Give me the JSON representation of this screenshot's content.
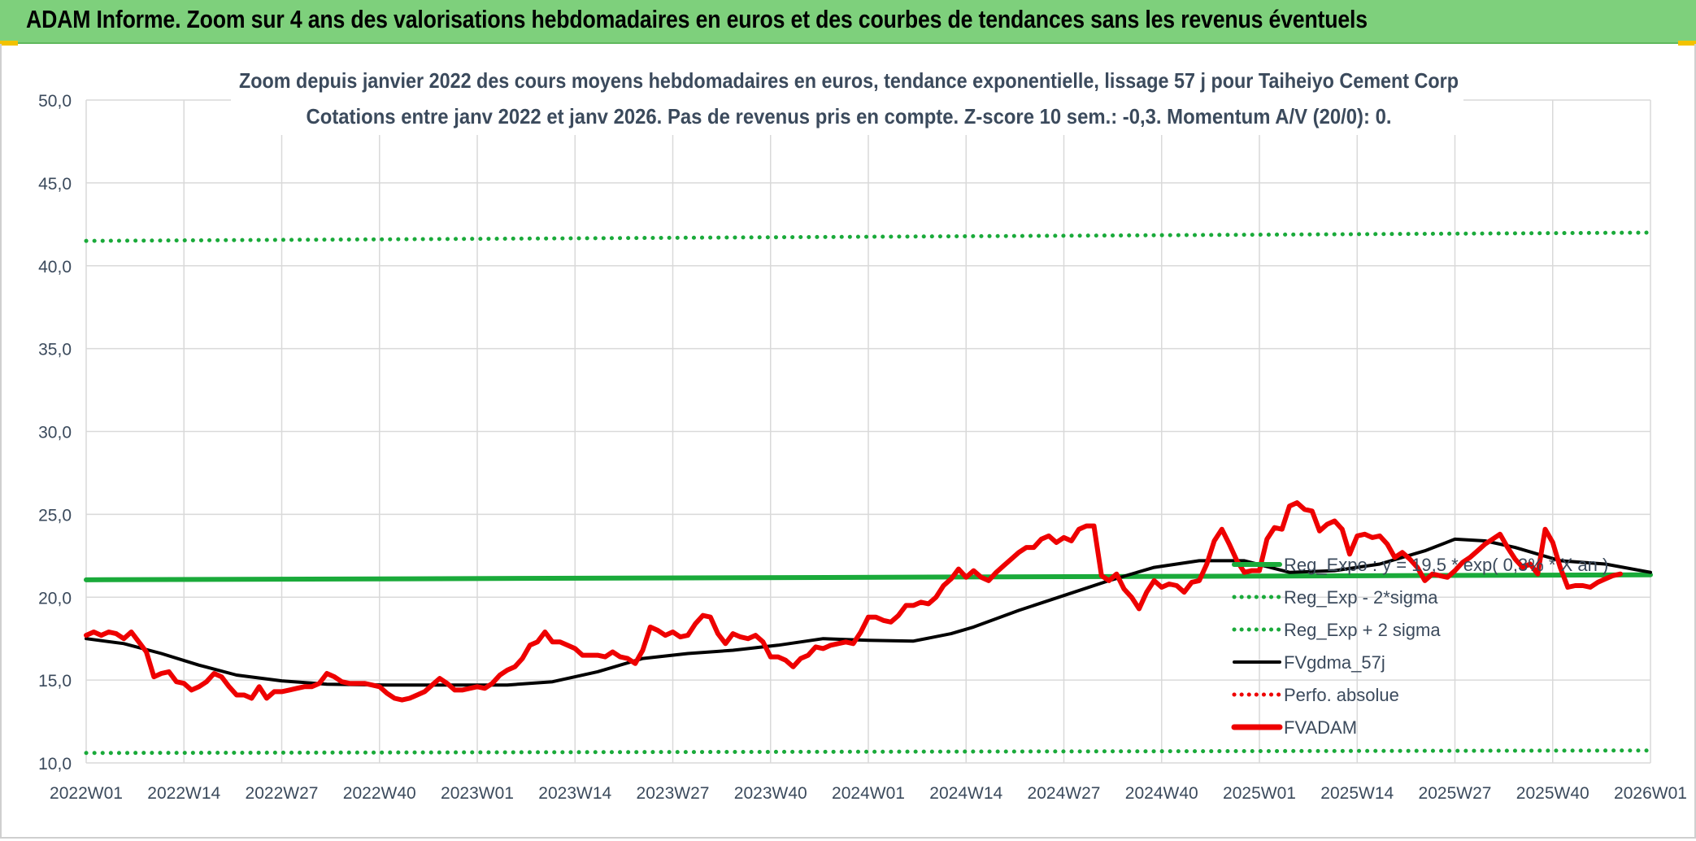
{
  "banner": {
    "title": "ADAM Informe. Zoom sur 4 ans des valorisations hebdomadaires en euros et des courbes de tendances sans les revenus éventuels"
  },
  "colors": {
    "banner_bg": "#7ed07c",
    "reg_expo": "#1aaa3a",
    "dotted_green": "#1aaa3a",
    "black_line": "#000000",
    "red_line": "#ee0000",
    "red_dotted": "#ee0000",
    "grid": "#d9d9d9",
    "title_text": "#3b4a5c",
    "axis_text": "#3b4a5c"
  },
  "chart_data": {
    "type": "line",
    "title_line1": "Zoom depuis janvier 2022 des cours moyens hebdomadaires en euros, tendance exponentielle, lissage 57 j pour Taiheiyo Cement Corp",
    "title_line2": "Cotations entre janv 2022 et janv 2026. Pas de revenus pris en compte. Z-score 10 sem.: -0,3. Momentum A/V (20/0): 0.",
    "ylim": [
      10,
      50
    ],
    "y_ticks": [
      "10,0",
      "15,0",
      "20,0",
      "25,0",
      "30,0",
      "35,0",
      "40,0",
      "45,0",
      "50,0"
    ],
    "x_count": 209,
    "x_tick_labels": [
      "2022W01",
      "2022W14",
      "2022W27",
      "2022W40",
      "2023W01",
      "2023W14",
      "2023W27",
      "2023W40",
      "2024W01",
      "2024W14",
      "2024W27",
      "2024W40",
      "2025W01",
      "2025W14",
      "2025W27",
      "2025W40",
      "2026W01"
    ],
    "legend": [
      {
        "name": "Reg_Expo : y = 19,5 * exp( 0,3% * X  an )",
        "style": "thick-green"
      },
      {
        "name": "Reg_Exp - 2*sigma",
        "style": "dotted-green"
      },
      {
        "name": "Reg_Exp + 2 sigma",
        "style": "dotted-green"
      },
      {
        "name": "FVgdma_57j",
        "style": "black"
      },
      {
        "name": "Perfo. absolue",
        "style": "dotted-red"
      },
      {
        "name": "FVADAM",
        "style": "thick-red"
      }
    ],
    "series": [
      {
        "name": "Reg_Expo",
        "start": 21.05,
        "end": 21.35
      },
      {
        "name": "Reg_Exp - 2*sigma",
        "start": 10.6,
        "end": 10.75
      },
      {
        "name": "Reg_Exp + 2 sigma",
        "start": 41.5,
        "end": 42.0
      },
      {
        "name": "FVgdma_57j",
        "points": [
          [
            0,
            17.5
          ],
          [
            5,
            17.2
          ],
          [
            10,
            16.6
          ],
          [
            15,
            15.9
          ],
          [
            20,
            15.3
          ],
          [
            26,
            14.95
          ],
          [
            32,
            14.75
          ],
          [
            40,
            14.7
          ],
          [
            48,
            14.7
          ],
          [
            56,
            14.7
          ],
          [
            62,
            14.9
          ],
          [
            68,
            15.5
          ],
          [
            74,
            16.3
          ],
          [
            80,
            16.6
          ],
          [
            86,
            16.8
          ],
          [
            92,
            17.1
          ],
          [
            98,
            17.5
          ],
          [
            104,
            17.4
          ],
          [
            110,
            17.35
          ],
          [
            115,
            17.8
          ],
          [
            118,
            18.2
          ],
          [
            124,
            19.2
          ],
          [
            130,
            20.1
          ],
          [
            136,
            21.0
          ],
          [
            142,
            21.8
          ],
          [
            148,
            22.2
          ],
          [
            154,
            22.2
          ],
          [
            160,
            21.5
          ],
          [
            166,
            21.6
          ],
          [
            172,
            22.0
          ],
          [
            178,
            22.8
          ],
          [
            182,
            23.5
          ],
          [
            186,
            23.4
          ],
          [
            190,
            23.0
          ],
          [
            196,
            22.2
          ],
          [
            202,
            22.0
          ],
          [
            208,
            21.5
          ]
        ]
      },
      {
        "name": "FVADAM",
        "points": [
          [
            0,
            17.7
          ],
          [
            1,
            17.9
          ],
          [
            2,
            17.7
          ],
          [
            3,
            17.9
          ],
          [
            4,
            17.8
          ],
          [
            5,
            17.5
          ],
          [
            6,
            17.9
          ],
          [
            7,
            17.3
          ],
          [
            8,
            16.7
          ],
          [
            9,
            15.2
          ],
          [
            10,
            15.4
          ],
          [
            11,
            15.5
          ],
          [
            12,
            14.9
          ],
          [
            13,
            14.8
          ],
          [
            14,
            14.4
          ],
          [
            15,
            14.6
          ],
          [
            16,
            14.9
          ],
          [
            17,
            15.4
          ],
          [
            18,
            15.2
          ],
          [
            19,
            14.6
          ],
          [
            20,
            14.1
          ],
          [
            21,
            14.1
          ],
          [
            22,
            13.9
          ],
          [
            23,
            14.6
          ],
          [
            24,
            13.9
          ],
          [
            25,
            14.3
          ],
          [
            26,
            14.3
          ],
          [
            27,
            14.4
          ],
          [
            28,
            14.5
          ],
          [
            29,
            14.6
          ],
          [
            30,
            14.6
          ],
          [
            31,
            14.8
          ],
          [
            32,
            15.4
          ],
          [
            33,
            15.2
          ],
          [
            34,
            14.9
          ],
          [
            35,
            14.8
          ],
          [
            36,
            14.8
          ],
          [
            37,
            14.8
          ],
          [
            38,
            14.7
          ],
          [
            39,
            14.6
          ],
          [
            40,
            14.2
          ],
          [
            41,
            13.9
          ],
          [
            42,
            13.8
          ],
          [
            43,
            13.9
          ],
          [
            44,
            14.1
          ],
          [
            45,
            14.3
          ],
          [
            46,
            14.7
          ],
          [
            47,
            15.1
          ],
          [
            48,
            14.8
          ],
          [
            49,
            14.4
          ],
          [
            50,
            14.4
          ],
          [
            51,
            14.5
          ],
          [
            52,
            14.6
          ],
          [
            53,
            14.5
          ],
          [
            54,
            14.8
          ],
          [
            55,
            15.3
          ],
          [
            56,
            15.6
          ],
          [
            57,
            15.8
          ],
          [
            58,
            16.3
          ],
          [
            59,
            17.1
          ],
          [
            60,
            17.3
          ],
          [
            61,
            17.9
          ],
          [
            62,
            17.3
          ],
          [
            63,
            17.3
          ],
          [
            64,
            17.1
          ],
          [
            65,
            16.9
          ],
          [
            66,
            16.5
          ],
          [
            67,
            16.5
          ],
          [
            68,
            16.5
          ],
          [
            69,
            16.4
          ],
          [
            70,
            16.7
          ],
          [
            71,
            16.4
          ],
          [
            72,
            16.3
          ],
          [
            73,
            16.0
          ],
          [
            74,
            16.8
          ],
          [
            75,
            18.2
          ],
          [
            76,
            18.0
          ],
          [
            77,
            17.7
          ],
          [
            78,
            17.9
          ],
          [
            79,
            17.6
          ],
          [
            80,
            17.7
          ],
          [
            81,
            18.4
          ],
          [
            82,
            18.9
          ],
          [
            83,
            18.8
          ],
          [
            84,
            17.8
          ],
          [
            85,
            17.2
          ],
          [
            86,
            17.8
          ],
          [
            87,
            17.6
          ],
          [
            88,
            17.5
          ],
          [
            89,
            17.7
          ],
          [
            90,
            17.3
          ],
          [
            91,
            16.4
          ],
          [
            92,
            16.4
          ],
          [
            93,
            16.2
          ],
          [
            94,
            15.8
          ],
          [
            95,
            16.3
          ],
          [
            96,
            16.5
          ],
          [
            97,
            17.0
          ],
          [
            98,
            16.9
          ],
          [
            99,
            17.1
          ],
          [
            100,
            17.2
          ],
          [
            101,
            17.3
          ],
          [
            102,
            17.2
          ],
          [
            103,
            17.9
          ],
          [
            104,
            18.8
          ],
          [
            105,
            18.8
          ],
          [
            106,
            18.6
          ],
          [
            107,
            18.5
          ],
          [
            108,
            18.9
          ],
          [
            109,
            19.5
          ],
          [
            110,
            19.5
          ],
          [
            111,
            19.7
          ],
          [
            112,
            19.6
          ],
          [
            113,
            20.0
          ],
          [
            114,
            20.7
          ],
          [
            115,
            21.1
          ],
          [
            116,
            21.7
          ],
          [
            117,
            21.2
          ],
          [
            118,
            21.6
          ],
          [
            119,
            21.2
          ],
          [
            120,
            21.0
          ],
          [
            121,
            21.5
          ],
          [
            122,
            21.9
          ],
          [
            123,
            22.3
          ],
          [
            124,
            22.7
          ],
          [
            125,
            23.0
          ],
          [
            126,
            23.0
          ],
          [
            127,
            23.5
          ],
          [
            128,
            23.7
          ],
          [
            129,
            23.3
          ],
          [
            130,
            23.6
          ],
          [
            131,
            23.4
          ],
          [
            132,
            24.1
          ],
          [
            133,
            24.3
          ],
          [
            134,
            24.3
          ],
          [
            135,
            21.3
          ],
          [
            136,
            21.0
          ],
          [
            137,
            21.4
          ],
          [
            138,
            20.5
          ],
          [
            139,
            20.0
          ],
          [
            140,
            19.3
          ],
          [
            141,
            20.3
          ],
          [
            142,
            21.0
          ],
          [
            143,
            20.6
          ],
          [
            144,
            20.8
          ],
          [
            145,
            20.7
          ],
          [
            146,
            20.3
          ],
          [
            147,
            20.9
          ],
          [
            148,
            21.0
          ],
          [
            149,
            22.0
          ],
          [
            150,
            23.4
          ],
          [
            151,
            24.1
          ],
          [
            152,
            23.2
          ],
          [
            153,
            22.2
          ],
          [
            154,
            21.5
          ],
          [
            155,
            21.6
          ],
          [
            156,
            21.6
          ],
          [
            157,
            23.5
          ],
          [
            158,
            24.2
          ],
          [
            159,
            24.1
          ],
          [
            160,
            25.5
          ],
          [
            161,
            25.7
          ],
          [
            162,
            25.3
          ],
          [
            163,
            25.2
          ],
          [
            164,
            24.0
          ],
          [
            165,
            24.4
          ],
          [
            166,
            24.6
          ],
          [
            167,
            24.1
          ],
          [
            168,
            22.6
          ],
          [
            169,
            23.7
          ],
          [
            170,
            23.8
          ],
          [
            171,
            23.6
          ],
          [
            172,
            23.7
          ],
          [
            173,
            23.2
          ],
          [
            174,
            22.4
          ],
          [
            175,
            22.7
          ],
          [
            176,
            22.3
          ],
          [
            177,
            21.8
          ],
          [
            178,
            21.0
          ],
          [
            179,
            21.4
          ],
          [
            180,
            21.3
          ],
          [
            181,
            21.2
          ],
          [
            182,
            21.6
          ],
          [
            183,
            22.1
          ],
          [
            184,
            22.4
          ],
          [
            185,
            22.8
          ],
          [
            186,
            23.2
          ],
          [
            187,
            23.5
          ],
          [
            188,
            23.8
          ],
          [
            189,
            23.0
          ],
          [
            190,
            22.3
          ],
          [
            191,
            21.8
          ],
          [
            192,
            22.0
          ],
          [
            193,
            21.4
          ],
          [
            194,
            24.1
          ],
          [
            195,
            23.3
          ],
          [
            196,
            21.8
          ],
          [
            197,
            20.6
          ],
          [
            198,
            20.7
          ],
          [
            199,
            20.7
          ],
          [
            200,
            20.6
          ],
          [
            201,
            20.9
          ],
          [
            202,
            21.1
          ],
          [
            203,
            21.3
          ],
          [
            204,
            21.4
          ]
        ]
      }
    ]
  }
}
